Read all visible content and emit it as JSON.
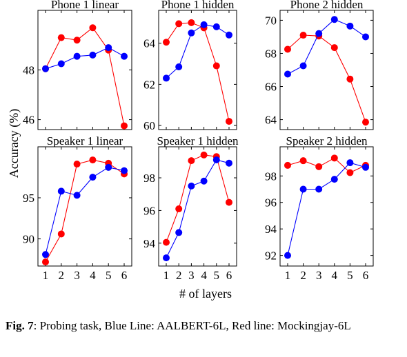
{
  "figure": {
    "ylabel": "Accuracy (%)",
    "xlabel": "# of layers",
    "caption_label": "Fig. 7",
    "caption_text": ":  Probing task, Blue Line:  AALBERT-6L, Red line: Mockingjay-6L"
  },
  "colors": {
    "blue": "#0000ff",
    "red": "#ff0000"
  },
  "chart_data": [
    {
      "type": "line",
      "title": "Phone 1 linear",
      "x": [
        1,
        2,
        3,
        4,
        5,
        6
      ],
      "xticks": [],
      "ylim": [
        45.6,
        50.4
      ],
      "yticks": [
        46,
        48
      ],
      "series": [
        {
          "color": "blue",
          "values": [
            48.05,
            48.25,
            48.55,
            48.6,
            48.9,
            48.55
          ]
        },
        {
          "color": "red",
          "values": [
            48.05,
            49.3,
            49.2,
            49.7,
            48.8,
            45.75
          ]
        }
      ]
    },
    {
      "type": "line",
      "title": "Phone 1 hidden",
      "x": [
        1,
        2,
        3,
        4,
        5,
        6
      ],
      "xticks": [],
      "ylim": [
        59.8,
        65.6
      ],
      "yticks": [
        60,
        62,
        64
      ],
      "series": [
        {
          "color": "blue",
          "values": [
            62.3,
            62.85,
            64.5,
            64.9,
            64.8,
            64.4
          ]
        },
        {
          "color": "red",
          "values": [
            64.05,
            64.95,
            65.0,
            64.75,
            62.9,
            60.2
          ]
        }
      ]
    },
    {
      "type": "line",
      "title": "Phone 2 hidden",
      "x": [
        1,
        2,
        3,
        4,
        5,
        6
      ],
      "xticks": [],
      "ylim": [
        63.4,
        70.6
      ],
      "yticks": [
        64,
        66,
        68,
        70
      ],
      "series": [
        {
          "color": "blue",
          "values": [
            66.75,
            67.25,
            69.2,
            70.05,
            69.65,
            69.0
          ]
        },
        {
          "color": "red",
          "values": [
            68.25,
            69.1,
            69.05,
            68.35,
            66.45,
            63.85
          ]
        }
      ]
    },
    {
      "type": "line",
      "title": "Speaker 1 linear",
      "x": [
        1,
        2,
        3,
        4,
        5,
        6
      ],
      "xticks": [
        1,
        2,
        3,
        4,
        5,
        6
      ],
      "ylim": [
        86.7,
        101.2
      ],
      "yticks": [
        90,
        95
      ],
      "series": [
        {
          "color": "blue",
          "values": [
            88.1,
            95.8,
            95.3,
            97.5,
            98.7,
            98.3
          ]
        },
        {
          "color": "red",
          "values": [
            87.2,
            90.6,
            99.1,
            99.6,
            99.2,
            97.9
          ]
        }
      ]
    },
    {
      "type": "line",
      "title": "Speaker 1 hidden",
      "x": [
        1,
        2,
        3,
        4,
        5,
        6
      ],
      "xticks": [
        1,
        2,
        3,
        4,
        5,
        6
      ],
      "ylim": [
        92.6,
        99.9
      ],
      "yticks": [
        94,
        96,
        98
      ],
      "series": [
        {
          "color": "blue",
          "values": [
            93.1,
            94.65,
            97.5,
            97.8,
            99.1,
            98.9
          ]
        },
        {
          "color": "red",
          "values": [
            94.05,
            96.1,
            99.05,
            99.4,
            99.3,
            96.5
          ]
        }
      ]
    },
    {
      "type": "line",
      "title": "Speaker 2 hidden",
      "x": [
        1,
        2,
        3,
        4,
        5,
        6
      ],
      "xticks": [
        1,
        2,
        3,
        4,
        5,
        6
      ],
      "ylim": [
        91.2,
        100.2
      ],
      "yticks": [
        92,
        94,
        96,
        98
      ],
      "series": [
        {
          "color": "blue",
          "values": [
            92.0,
            97.0,
            97.0,
            97.75,
            99.0,
            98.65
          ]
        },
        {
          "color": "red",
          "values": [
            98.8,
            99.15,
            98.7,
            99.35,
            98.25,
            98.8
          ]
        }
      ]
    }
  ]
}
